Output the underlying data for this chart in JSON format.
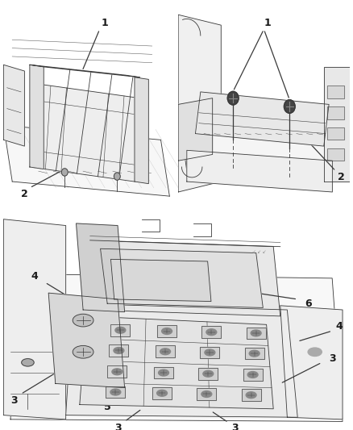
{
  "background_color": "#ffffff",
  "line_color": "#3a3a3a",
  "label_color": "#1a1a1a",
  "fig_width": 4.38,
  "fig_height": 5.33,
  "dpi": 100
}
